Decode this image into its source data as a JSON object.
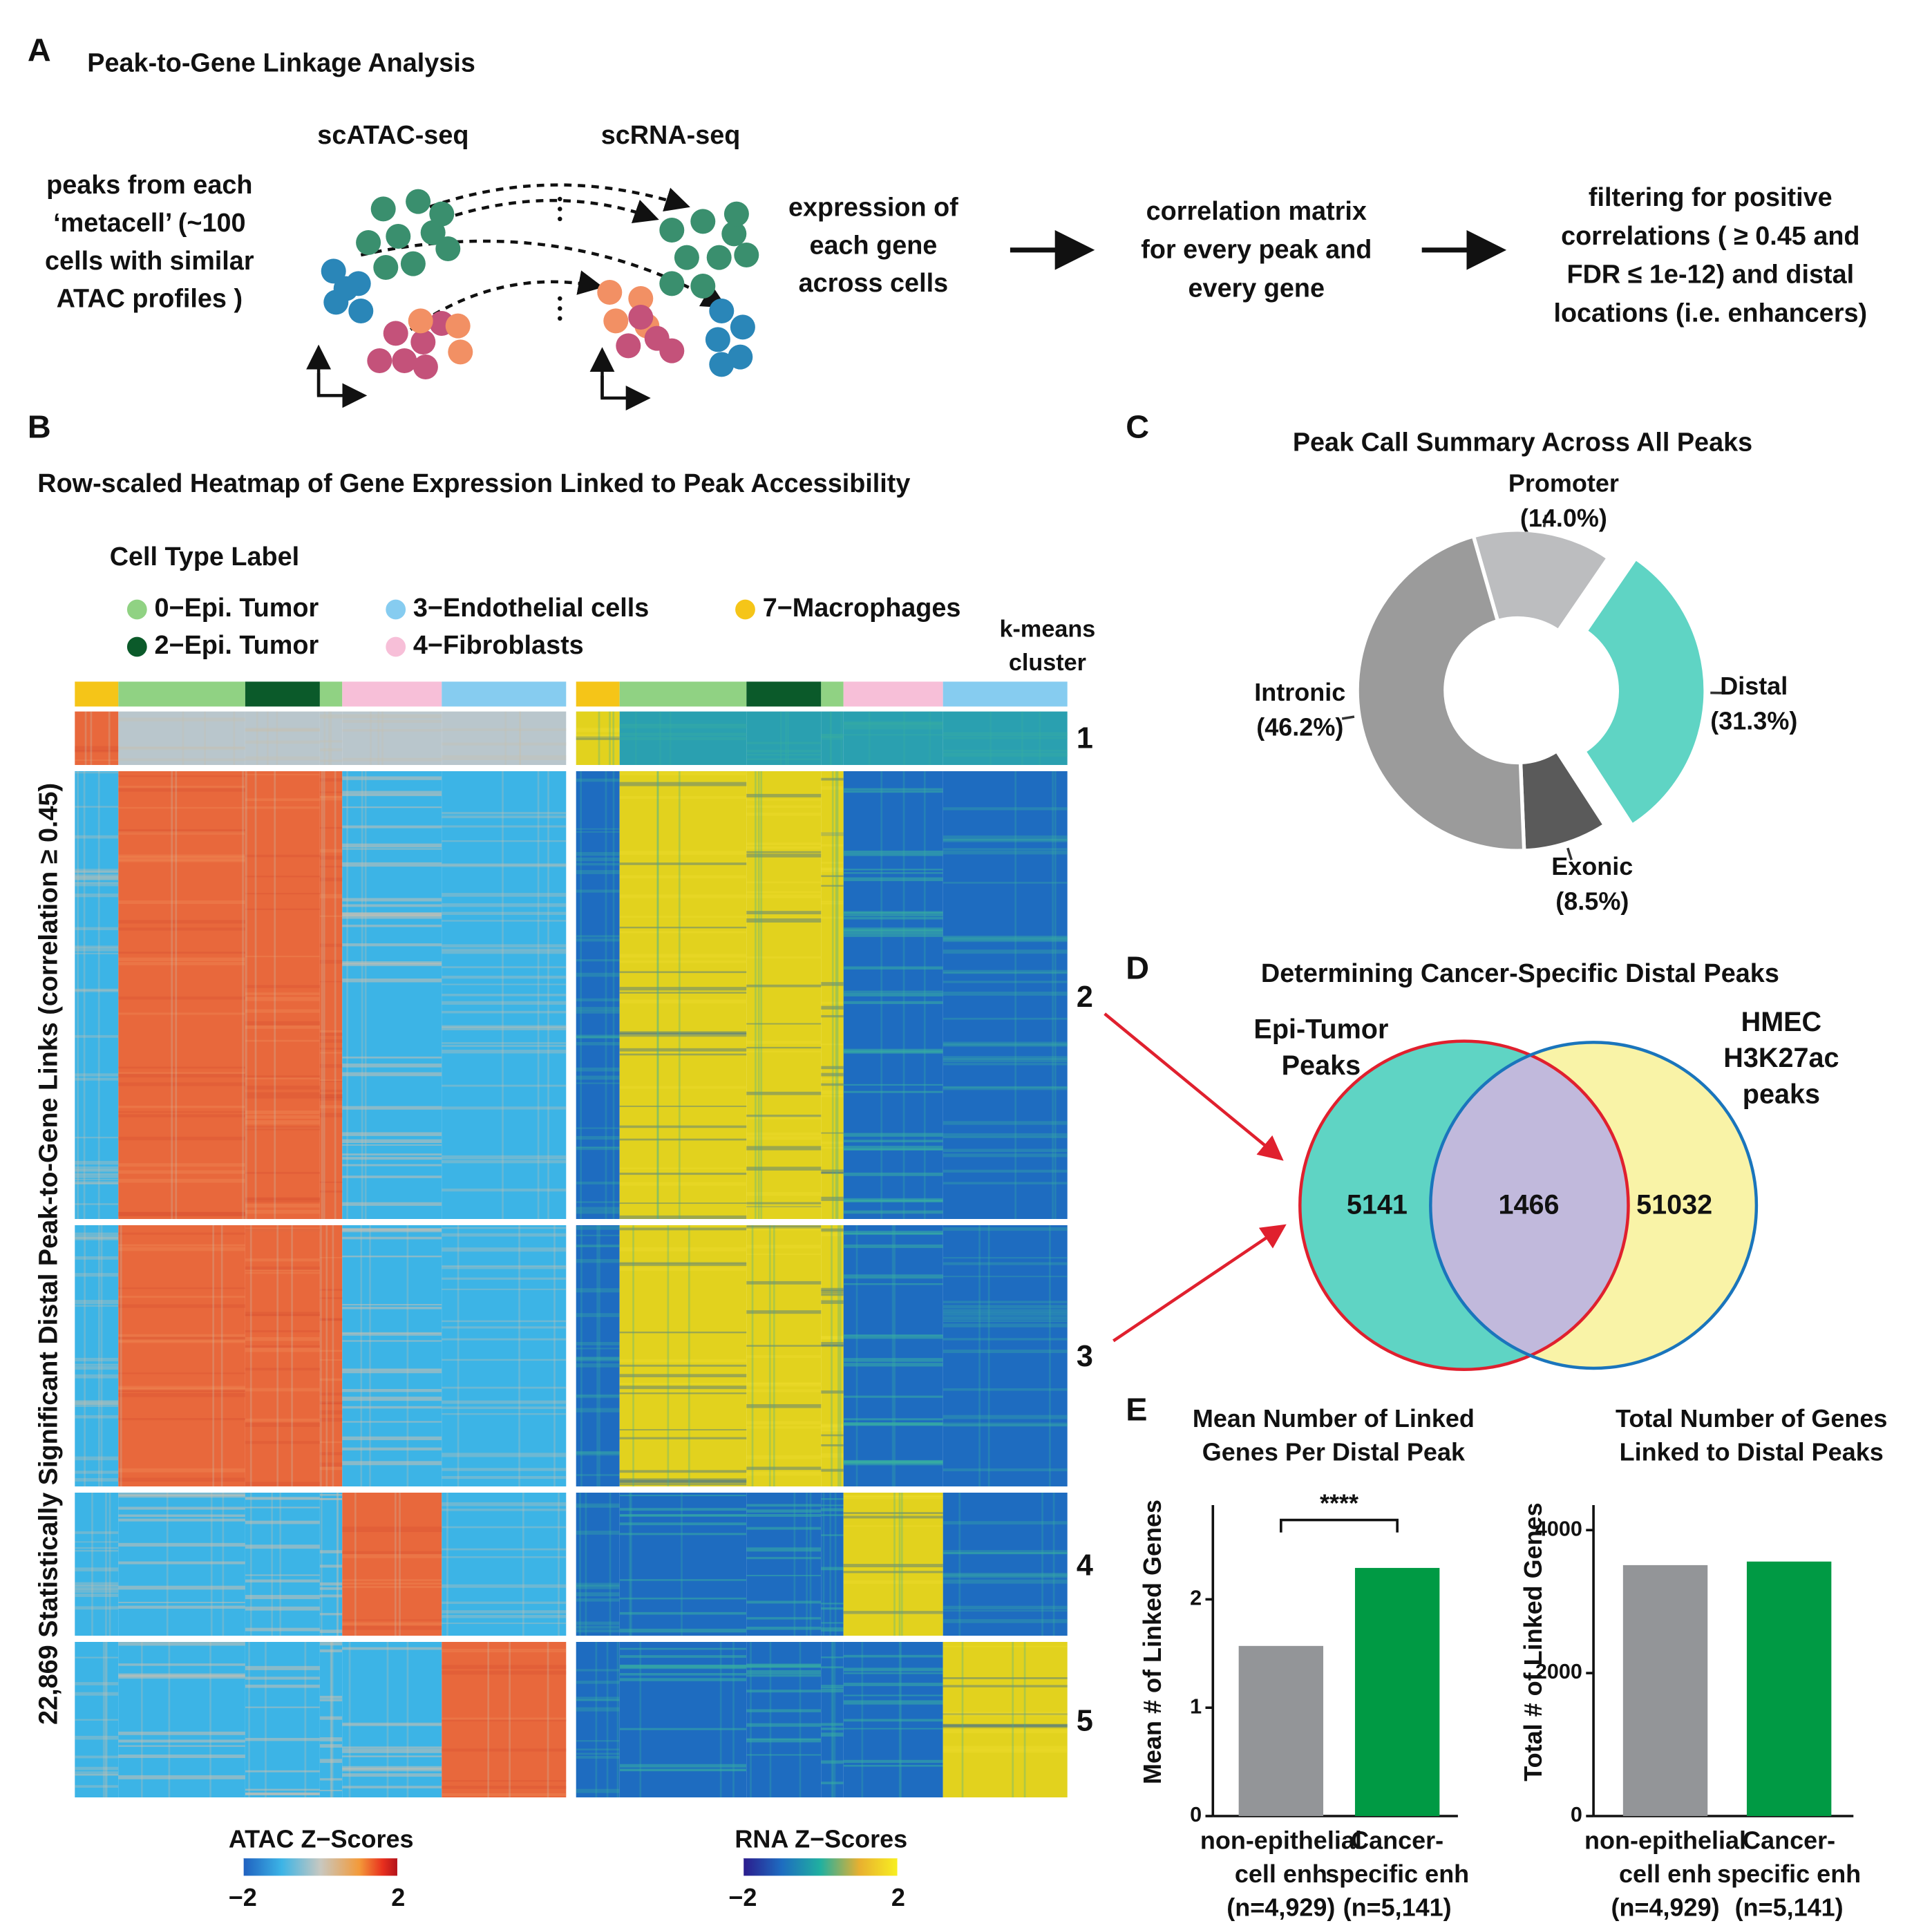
{
  "figure": {
    "panel_a": {
      "letter": "A",
      "title": "Peak-to-Gene Linkage Analysis",
      "atac_label": "scATAC-seq",
      "rna_label": "scRNA-seq",
      "steps": [
        [
          "peaks from each",
          "‘metacell’ (~100",
          "cells with similar",
          "ATAC profiles )"
        ],
        [
          "expression of",
          "each gene",
          "across cells"
        ],
        [
          "correlation matrix",
          "for every peak and",
          "every gene"
        ],
        [
          "filtering for positive",
          "correlations ( ≥ 0.45 and",
          "FDR ≤ 1e-12) and distal",
          "locations (i.e. enhancers)"
        ]
      ]
    },
    "panel_b": {
      "letter": "B",
      "title": "Row-scaled Heatmap of Gene Expression Linked to Peak Accessibility",
      "legend_title": "Cell Type Label",
      "cell_types": [
        {
          "name": "0−Epi. Tumor",
          "color": "#90d283"
        },
        {
          "name": "2−Epi. Tumor",
          "color": "#0b5a2a"
        },
        {
          "name": "3−Endothelial cells",
          "color": "#86ccf0"
        },
        {
          "name": "4−Fibroblasts",
          "color": "#f7bfd8"
        },
        {
          "name": "7−Macrophages",
          "color": "#f5c518"
        }
      ],
      "cluster_title": [
        "k-means",
        "cluster"
      ],
      "clusters": [
        "1",
        "2",
        "3",
        "4",
        "5"
      ],
      "cluster_colors": [
        "#000000",
        "#e0202e",
        "#e0202e",
        "#000000",
        "#000000"
      ],
      "y_label": "22,869 Statistically Significant Distal Peak-to-Gene Links (correlation ≥ 0.45)",
      "atac_scale": {
        "title": "ATAC Z−Scores",
        "clim": [
          -2,
          2
        ],
        "ticks": [
          {
            "value": -2,
            "label": "−2"
          },
          2
        ]
      },
      "rna_scale": {
        "title": "RNA Z−Scores",
        "clim": [
          -2,
          2
        ],
        "ticks": [
          {
            "value": -2,
            "label": "−2"
          },
          2
        ]
      }
    },
    "panel_c": {
      "letter": "C"
    },
    "panel_d": {
      "letter": "D",
      "title": "Determining Cancer-Specific Distal Peaks",
      "sets": [
        {
          "name": [
            "Epi-Tumor",
            "Peaks"
          ],
          "color": "#e0202e",
          "fill": "#5fd4c4"
        },
        {
          "name": [
            "HMEC",
            "H3K27ac",
            "peaks"
          ],
          "color": "#1a75bc",
          "fill": "#f9f3a7"
        }
      ],
      "overlap_fill": "#c1b9dc",
      "counts": [
        5141,
        1466,
        51032
      ]
    },
    "panel_e": {
      "letter": "E"
    }
  },
  "chart_data": [
    {
      "type": "pie",
      "title": "Peak Call Summary Across All Peaks",
      "categories": [
        "Promoter",
        "Distal",
        "Exonic",
        "Intronic"
      ],
      "values": [
        14.0,
        31.3,
        8.5,
        46.2
      ],
      "value_labels": [
        "(14.0%)",
        "(31.3%)",
        "(8.5%)",
        "(46.2%)"
      ],
      "colors": [
        "#bcbdbf",
        "#5fd4c4",
        "#5a5a5a",
        "#9b9b9b"
      ],
      "exploded": "Distal"
    },
    {
      "type": "bar",
      "title": [
        "Mean Number of Linked",
        "Genes Per Distal Peak"
      ],
      "y_label": "Mean # of Linked Genes",
      "categories": [
        [
          "non-epithelial",
          "cell enh",
          "(n=4,929)"
        ],
        [
          "Cancer-",
          "specific enh",
          "(n=5,141)"
        ]
      ],
      "values": [
        1.57,
        2.29
      ],
      "colors": [
        "#939598",
        "#009a44"
      ],
      "ylim": [
        0,
        2.87
      ],
      "yticks": [
        0,
        1,
        2
      ],
      "annotation": "****"
    },
    {
      "type": "bar",
      "title": [
        "Total Number of Genes",
        "Linked to Distal Peaks"
      ],
      "y_label": "Total # of Linked Genes",
      "categories": [
        [
          "non-epithelial",
          "cell enh",
          "(n=4,929)"
        ],
        [
          "Cancer-",
          "specific enh",
          "(n=5,141)"
        ]
      ],
      "values": [
        3510,
        3560
      ],
      "colors": [
        "#939598",
        "#009a44"
      ],
      "ylim": [
        0,
        4350
      ],
      "yticks": [
        0,
        2000,
        4000
      ]
    }
  ]
}
